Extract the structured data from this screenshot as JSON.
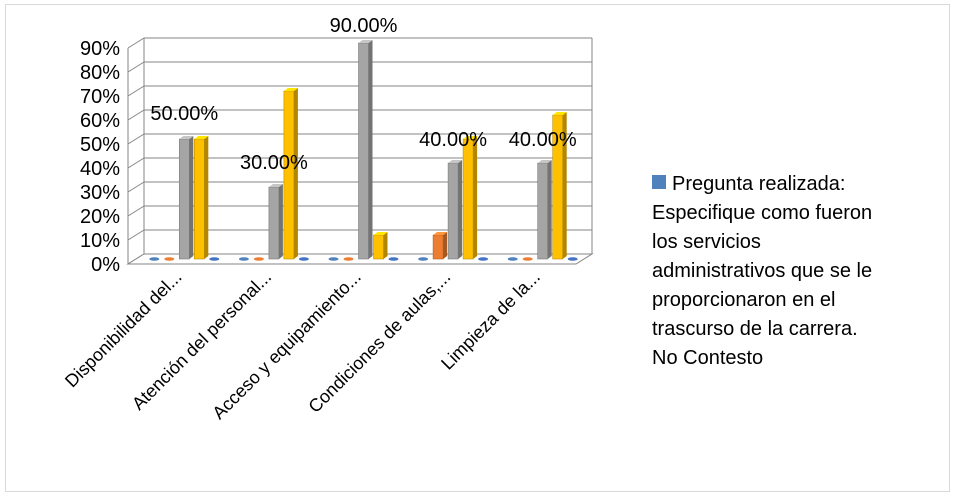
{
  "chart_data": {
    "type": "bar",
    "three_d": true,
    "categories": [
      "Disponibilidad del...",
      "Atención del personal...",
      "Acceso y equipamiento...",
      "Condiciones de aulas,...",
      "Limpieza de la..."
    ],
    "series": [
      {
        "values": [
          0,
          0,
          0,
          0,
          0
        ],
        "color": "#4f81bd"
      },
      {
        "values": [
          0,
          0,
          0,
          10,
          0
        ],
        "color": "#ed7d31"
      },
      {
        "values": [
          50,
          30,
          90,
          40,
          40
        ],
        "color": "#a5a5a5"
      },
      {
        "values": [
          50,
          70,
          10,
          50,
          60
        ],
        "color": "#ffc000"
      },
      {
        "values": [
          0,
          0,
          0,
          0,
          0
        ],
        "color": "#4472c4"
      }
    ],
    "data_labels": [
      "50.00%",
      "30.00%",
      "90.00%",
      "40.00%",
      "40.00%"
    ],
    "y_ticks": [
      "0%",
      "10%",
      "20%",
      "30%",
      "40%",
      "50%",
      "60%",
      "70%",
      "80%",
      "90%"
    ],
    "ylim": [
      0,
      90
    ],
    "grid": true,
    "legend_position": "right",
    "legend": {
      "text": "Pregunta realizada:\nEspecifique como fueron\nlos servicios\nadministrativos que se le\nproporcionaron en el\ntrascurso de la carrera.\nNo Contesto",
      "color": "#4f81bd"
    }
  }
}
